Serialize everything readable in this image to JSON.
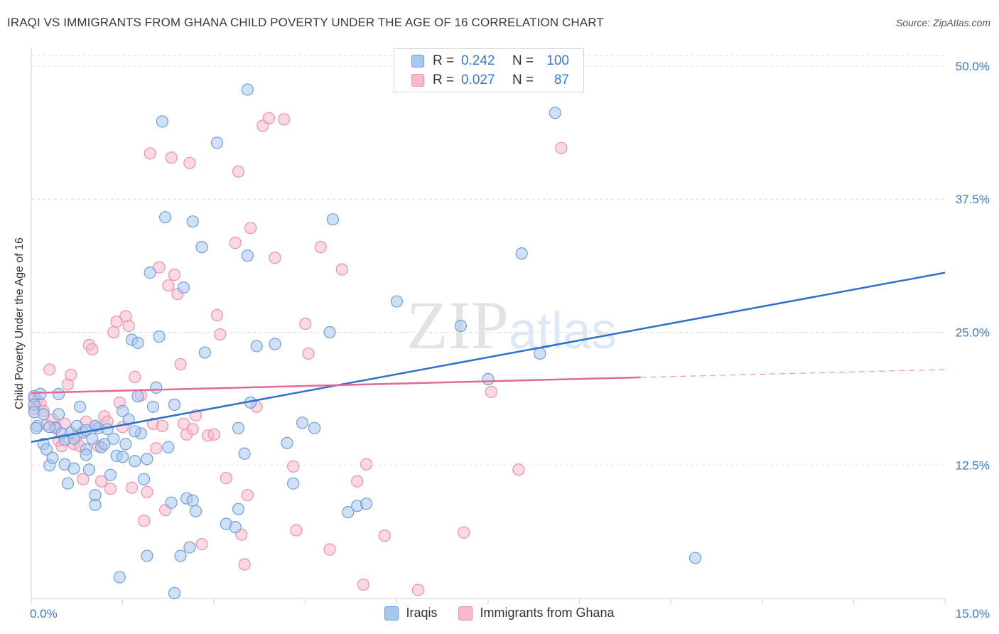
{
  "colors": {
    "series1_fill": "#a9c6ee",
    "series1_stroke": "#6f9fd8",
    "series1_line": "#2f6fcb",
    "series2_fill": "#f7b9cb",
    "series2_stroke": "#ee8fab",
    "series2_line": "#e0699a",
    "grid": "#dedede",
    "axis_text": "#3a78c9"
  },
  "chart_data": {
    "type": "scatter",
    "title": "IRAQI VS IMMIGRANTS FROM GHANA CHILD POVERTY UNDER THE AGE OF 16 CORRELATION CHART",
    "source": "Source: ZipAtlas.com",
    "watermark": "ZIPatlas",
    "xlabel": "",
    "ylabel": "Child Poverty Under the Age of 16",
    "xlim": [
      0,
      15
    ],
    "ylim": [
      0,
      51
    ],
    "x_tick_labels": [
      "0.0%",
      "15.0%"
    ],
    "y_ticks": [
      12.5,
      25.0,
      37.5,
      50.0
    ],
    "y_tick_labels": [
      "12.5%",
      "25.0%",
      "37.5%",
      "50.0%"
    ],
    "legend_stats": [
      {
        "r_label": "R =",
        "r": "0.242",
        "n_label": "N =",
        "n": "100"
      },
      {
        "r_label": "R =",
        "r": "0.027",
        "n_label": "N =",
        "n": "87"
      }
    ],
    "series": [
      {
        "name": "Iraqis",
        "trend": {
          "x": [
            0,
            15
          ],
          "y": [
            14.7,
            30.6
          ],
          "dashed_from": null
        },
        "points": [
          [
            0.05,
            19.0
          ],
          [
            0.05,
            18.2
          ],
          [
            0.05,
            17.5
          ],
          [
            0.1,
            16.2
          ],
          [
            0.15,
            19.2
          ],
          [
            0.2,
            17.3
          ],
          [
            0.2,
            14.5
          ],
          [
            0.25,
            14.0
          ],
          [
            0.3,
            12.5
          ],
          [
            0.35,
            13.2
          ],
          [
            0.4,
            16.0
          ],
          [
            0.45,
            17.3
          ],
          [
            0.45,
            19.2
          ],
          [
            0.5,
            15.5
          ],
          [
            0.55,
            12.6
          ],
          [
            0.55,
            14.9
          ],
          [
            0.6,
            10.8
          ],
          [
            0.65,
            15.6
          ],
          [
            0.7,
            12.2
          ],
          [
            0.75,
            16.2
          ],
          [
            0.8,
            18.0
          ],
          [
            0.85,
            15.6
          ],
          [
            0.9,
            14.0
          ],
          [
            0.9,
            13.5
          ],
          [
            0.95,
            12.1
          ],
          [
            1.0,
            15.0
          ],
          [
            1.05,
            8.8
          ],
          [
            1.05,
            9.7
          ],
          [
            1.1,
            16.0
          ],
          [
            1.15,
            14.2
          ],
          [
            1.2,
            14.5
          ],
          [
            1.25,
            15.9
          ],
          [
            1.3,
            11.6
          ],
          [
            1.35,
            15.0
          ],
          [
            1.4,
            13.4
          ],
          [
            1.45,
            2.0
          ],
          [
            1.5,
            13.3
          ],
          [
            1.5,
            17.6
          ],
          [
            1.55,
            14.5
          ],
          [
            1.6,
            16.8
          ],
          [
            1.65,
            24.3
          ],
          [
            1.7,
            12.9
          ],
          [
            1.75,
            24.0
          ],
          [
            1.75,
            19.0
          ],
          [
            1.8,
            15.5
          ],
          [
            1.85,
            11.2
          ],
          [
            1.9,
            4.0
          ],
          [
            1.9,
            13.1
          ],
          [
            1.95,
            30.6
          ],
          [
            2.0,
            18.0
          ],
          [
            2.05,
            19.8
          ],
          [
            2.1,
            24.6
          ],
          [
            2.15,
            44.8
          ],
          [
            2.2,
            35.8
          ],
          [
            2.25,
            14.2
          ],
          [
            2.3,
            9.0
          ],
          [
            2.35,
            0.5
          ],
          [
            2.35,
            18.2
          ],
          [
            2.45,
            4.0
          ],
          [
            2.5,
            29.2
          ],
          [
            2.55,
            9.4
          ],
          [
            2.6,
            4.8
          ],
          [
            2.65,
            35.4
          ],
          [
            2.65,
            9.2
          ],
          [
            2.7,
            8.2
          ],
          [
            2.8,
            33.0
          ],
          [
            2.85,
            23.1
          ],
          [
            3.05,
            42.8
          ],
          [
            3.2,
            7.0
          ],
          [
            3.35,
            6.7
          ],
          [
            3.4,
            16.0
          ],
          [
            3.4,
            8.4
          ],
          [
            3.5,
            13.6
          ],
          [
            3.55,
            32.2
          ],
          [
            3.55,
            47.8
          ],
          [
            3.6,
            18.4
          ],
          [
            3.7,
            23.7
          ],
          [
            4.0,
            23.9
          ],
          [
            4.2,
            14.6
          ],
          [
            4.3,
            10.8
          ],
          [
            4.45,
            16.5
          ],
          [
            4.65,
            16.0
          ],
          [
            4.9,
            25.0
          ],
          [
            4.95,
            35.6
          ],
          [
            5.2,
            8.1
          ],
          [
            5.35,
            8.7
          ],
          [
            5.5,
            8.9
          ],
          [
            6.0,
            27.9
          ],
          [
            7.05,
            25.6
          ],
          [
            7.5,
            20.6
          ],
          [
            8.05,
            32.4
          ],
          [
            8.35,
            23.0
          ],
          [
            8.6,
            45.6
          ],
          [
            10.9,
            3.8
          ],
          [
            0.08,
            16.0
          ],
          [
            0.3,
            16.1
          ],
          [
            0.9,
            15.8
          ],
          [
            1.05,
            16.2
          ],
          [
            0.7,
            15.0
          ],
          [
            1.7,
            15.7
          ]
        ]
      },
      {
        "name": "Immigrants from Ghana",
        "trend": {
          "x": [
            0,
            15
          ],
          "y": [
            19.3,
            21.5
          ],
          "dashed_from": 10.0
        },
        "points": [
          [
            0.05,
            18.8
          ],
          [
            0.05,
            17.8
          ],
          [
            0.1,
            18.6
          ],
          [
            0.15,
            18.3
          ],
          [
            0.2,
            17.6
          ],
          [
            0.25,
            16.3
          ],
          [
            0.3,
            21.5
          ],
          [
            0.35,
            16.8
          ],
          [
            0.4,
            16.1
          ],
          [
            0.45,
            14.8
          ],
          [
            0.5,
            14.3
          ],
          [
            0.55,
            16.4
          ],
          [
            0.6,
            20.1
          ],
          [
            0.65,
            21.0
          ],
          [
            0.7,
            14.5
          ],
          [
            0.75,
            15.3
          ],
          [
            0.8,
            14.3
          ],
          [
            0.85,
            11.2
          ],
          [
            0.9,
            16.6
          ],
          [
            0.95,
            23.8
          ],
          [
            1.0,
            23.4
          ],
          [
            1.05,
            16.2
          ],
          [
            1.1,
            14.3
          ],
          [
            1.15,
            11.0
          ],
          [
            1.2,
            17.1
          ],
          [
            1.25,
            16.6
          ],
          [
            1.3,
            10.3
          ],
          [
            1.35,
            25.0
          ],
          [
            1.4,
            26.0
          ],
          [
            1.45,
            18.4
          ],
          [
            1.5,
            16.1
          ],
          [
            1.55,
            26.5
          ],
          [
            1.6,
            25.6
          ],
          [
            1.65,
            10.4
          ],
          [
            1.7,
            20.8
          ],
          [
            1.8,
            19.1
          ],
          [
            1.85,
            7.3
          ],
          [
            1.9,
            10.0
          ],
          [
            1.95,
            41.8
          ],
          [
            2.0,
            16.4
          ],
          [
            2.05,
            14.1
          ],
          [
            2.1,
            31.1
          ],
          [
            2.15,
            16.2
          ],
          [
            2.2,
            8.3
          ],
          [
            2.25,
            29.4
          ],
          [
            2.3,
            41.4
          ],
          [
            2.35,
            30.4
          ],
          [
            2.4,
            28.6
          ],
          [
            2.45,
            22.0
          ],
          [
            2.5,
            16.4
          ],
          [
            2.55,
            15.4
          ],
          [
            2.6,
            40.9
          ],
          [
            2.65,
            15.9
          ],
          [
            2.7,
            17.2
          ],
          [
            2.8,
            5.1
          ],
          [
            2.9,
            15.3
          ],
          [
            3.0,
            15.4
          ],
          [
            3.05,
            26.6
          ],
          [
            3.1,
            24.8
          ],
          [
            3.2,
            11.3
          ],
          [
            3.35,
            33.4
          ],
          [
            3.4,
            40.1
          ],
          [
            3.45,
            6.0
          ],
          [
            3.5,
            3.2
          ],
          [
            3.55,
            9.7
          ],
          [
            3.6,
            34.8
          ],
          [
            3.7,
            18.0
          ],
          [
            3.8,
            44.4
          ],
          [
            3.9,
            45.1
          ],
          [
            4.0,
            32.0
          ],
          [
            4.15,
            45.0
          ],
          [
            4.3,
            12.4
          ],
          [
            4.35,
            6.4
          ],
          [
            4.5,
            25.8
          ],
          [
            4.55,
            23.0
          ],
          [
            4.75,
            33.0
          ],
          [
            4.9,
            4.6
          ],
          [
            5.1,
            30.9
          ],
          [
            5.35,
            11.0
          ],
          [
            5.45,
            1.3
          ],
          [
            5.5,
            12.6
          ],
          [
            5.8,
            5.9
          ],
          [
            6.35,
            0.8
          ],
          [
            7.1,
            6.2
          ],
          [
            7.55,
            19.4
          ],
          [
            8.0,
            12.1
          ],
          [
            8.7,
            42.3
          ]
        ]
      }
    ]
  },
  "legend": {
    "items": [
      "Iraqis",
      "Immigrants from Ghana"
    ]
  }
}
